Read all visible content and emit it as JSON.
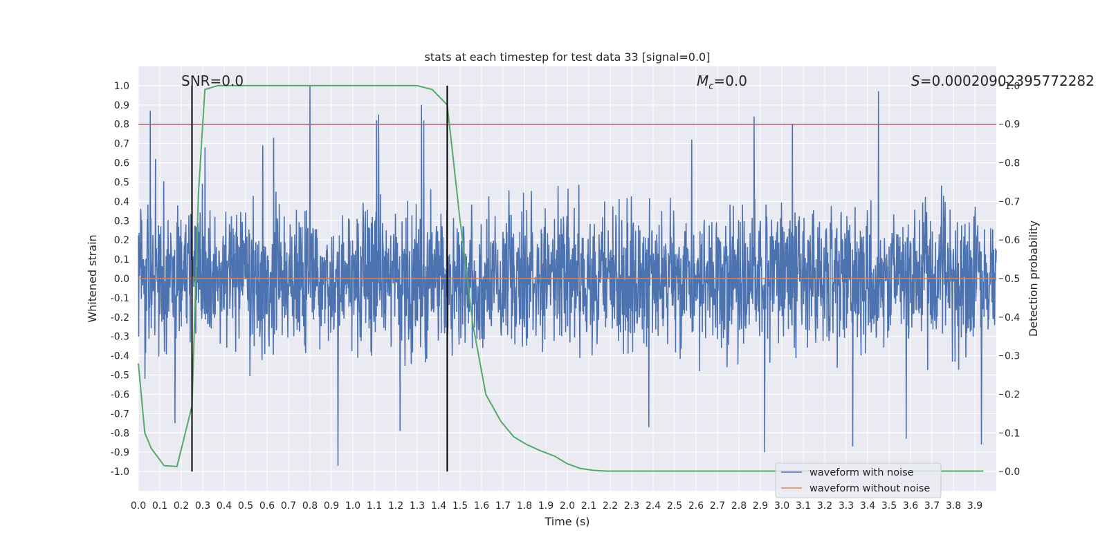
{
  "chart_data": {
    "type": "line",
    "title": "stats at each timestep for test data 33 [signal=0.0]",
    "xlabel": "Time (s)",
    "ylabel": "Whitened strain",
    "y2label": "Detection probability",
    "xlim": [
      0.0,
      4.0
    ],
    "ylim": [
      -1.1,
      1.1
    ],
    "y2lim": [
      -0.05,
      1.05
    ],
    "x_ticks": [
      "0.0",
      "0.1",
      "0.2",
      "0.3",
      "0.4",
      "0.5",
      "0.6",
      "0.7",
      "0.8",
      "0.9",
      "1.0",
      "1.1",
      "1.2",
      "1.3",
      "1.4",
      "1.5",
      "1.6",
      "1.7",
      "1.8",
      "1.9",
      "2.0",
      "2.1",
      "2.2",
      "2.3",
      "2.4",
      "2.5",
      "2.6",
      "2.7",
      "2.8",
      "2.9",
      "3.0",
      "3.1",
      "3.2",
      "3.3",
      "3.4",
      "3.5",
      "3.6",
      "3.7",
      "3.8",
      "3.9"
    ],
    "y_ticks": [
      "1.0",
      "0.9",
      "0.8",
      "0.7",
      "0.6",
      "0.5",
      "0.4",
      "0.3",
      "0.2",
      "0.1",
      "0.0",
      "-0.1",
      "-0.2",
      "-0.3",
      "-0.4",
      "-0.5",
      "-0.6",
      "-0.7",
      "-0.8",
      "-0.9",
      "-1.0"
    ],
    "y2_ticks": [
      "1.0",
      "0.9",
      "0.8",
      "0.7",
      "0.6",
      "0.5",
      "0.4",
      "0.3",
      "0.2",
      "0.1",
      "0.0"
    ],
    "grid": true,
    "legend_position": "lower-right",
    "background_color": "#EAEAF2",
    "annotations": {
      "snr": "SNR=0.0",
      "mc_symbol": "M",
      "mc_sub": "c",
      "mc_value": "=0.0",
      "s_symbol": "S",
      "s_value": "=0.00020902395772282"
    },
    "threshold_line": {
      "axis": "y2",
      "value": 0.9,
      "color": "#C44E52"
    },
    "vertical_lines": [
      0.25,
      1.44
    ],
    "vertical_lines_y2_range": [
      0.0,
      1.0
    ],
    "series": [
      {
        "name": "waveform with noise",
        "color": "#4C72B0",
        "axis": "y",
        "x_range": [
          0.0,
          4.0
        ],
        "approx_amplitude": 0.35,
        "peaks": [
          {
            "x": 0.055,
            "y": 0.87
          },
          {
            "x": 0.08,
            "y": 0.62
          },
          {
            "x": 0.31,
            "y": 0.68
          },
          {
            "x": 0.58,
            "y": 0.69
          },
          {
            "x": 0.63,
            "y": 0.73
          },
          {
            "x": 0.8,
            "y": 1.0
          },
          {
            "x": 1.11,
            "y": 0.82
          },
          {
            "x": 1.12,
            "y": 0.85
          },
          {
            "x": 1.32,
            "y": 0.9
          },
          {
            "x": 1.33,
            "y": 0.82
          },
          {
            "x": 2.58,
            "y": 0.72
          },
          {
            "x": 2.87,
            "y": 0.84
          },
          {
            "x": 3.05,
            "y": 0.8
          },
          {
            "x": 3.45,
            "y": 0.97
          }
        ],
        "troughs": [
          {
            "x": 0.03,
            "y": -0.52
          },
          {
            "x": 0.17,
            "y": -0.75
          },
          {
            "x": 0.93,
            "y": -0.97
          },
          {
            "x": 1.22,
            "y": -0.79
          },
          {
            "x": 2.38,
            "y": -0.77
          },
          {
            "x": 2.92,
            "y": -0.9
          },
          {
            "x": 3.33,
            "y": -0.87
          },
          {
            "x": 3.58,
            "y": -0.83
          },
          {
            "x": 3.93,
            "y": -0.86
          }
        ]
      },
      {
        "name": "waveform without noise",
        "color": "#DD8452",
        "axis": "y",
        "x": [
          0.0,
          4.0
        ],
        "y": [
          0.0,
          0.0
        ]
      },
      {
        "name": "detection probability",
        "color": "#55A868",
        "axis": "y2",
        "x": [
          0.0,
          0.03,
          0.06,
          0.12,
          0.18,
          0.25,
          0.28,
          0.31,
          0.37,
          0.44,
          0.6,
          0.8,
          1.0,
          1.2,
          1.3,
          1.37,
          1.44,
          1.5,
          1.56,
          1.62,
          1.69,
          1.75,
          1.81,
          1.87,
          1.94,
          2.0,
          2.06,
          2.12,
          2.18,
          2.25,
          2.5,
          2.75,
          3.0,
          3.25,
          3.5,
          3.75,
          3.94
        ],
        "y": [
          0.28,
          0.1,
          0.06,
          0.015,
          0.013,
          0.17,
          0.72,
          0.99,
          1.0,
          1.0,
          1.0,
          1.0,
          1.0,
          1.0,
          1.0,
          0.99,
          0.95,
          0.65,
          0.38,
          0.2,
          0.13,
          0.09,
          0.07,
          0.055,
          0.04,
          0.02,
          0.008,
          0.003,
          0.001,
          0.001,
          0.001,
          0.001,
          0.001,
          0.001,
          0.001,
          0.001,
          0.001
        ]
      }
    ]
  }
}
